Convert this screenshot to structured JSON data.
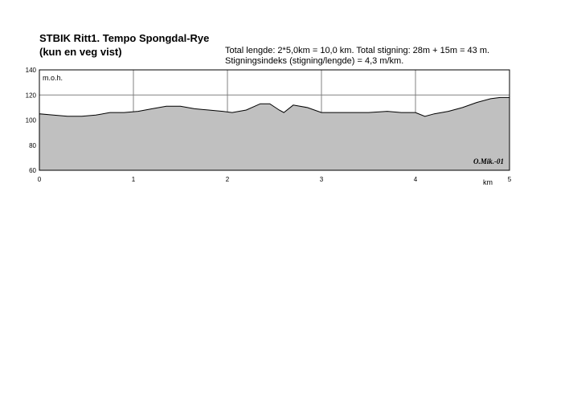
{
  "title_line1": "STBIK Ritt1. Tempo Spongdal-Rye",
  "title_line2": "(kun en veg vist)",
  "info_line1": "Total lengde: 2*5,0km = 10,0 km. Total stigning: 28m + 15m = 43 m.",
  "info_line2": "Stigningsindeks (stigning/lengde) = 4,3 m/km.",
  "signature": "O.Mik.-01",
  "chart_data": {
    "type": "area",
    "ylabel": "m.o.h.",
    "xlabel": "km",
    "xlim": [
      0,
      5
    ],
    "ylim": [
      60,
      140
    ],
    "xticks": [
      "0",
      "1",
      "2",
      "3",
      "4",
      "5"
    ],
    "yticks": [
      "60",
      "80",
      "100",
      "120",
      "140"
    ],
    "grid": true,
    "fill_color": "#c0c0c0",
    "x": [
      0,
      0.15,
      0.3,
      0.45,
      0.6,
      0.75,
      0.9,
      1.05,
      1.2,
      1.35,
      1.5,
      1.65,
      1.8,
      1.95,
      2.05,
      2.2,
      2.35,
      2.45,
      2.55,
      2.6,
      2.7,
      2.85,
      3.0,
      3.15,
      3.3,
      3.5,
      3.7,
      3.85,
      4.0,
      4.1,
      4.2,
      4.35,
      4.5,
      4.65,
      4.8,
      4.9,
      5.0
    ],
    "y": [
      105,
      104,
      103,
      103,
      104,
      106,
      106,
      107,
      109,
      111,
      111,
      109,
      108,
      107,
      106,
      108,
      113,
      113,
      108,
      106,
      112,
      110,
      106,
      106,
      106,
      106,
      107,
      106,
      106,
      103,
      105,
      107,
      110,
      114,
      117,
      118,
      118
    ]
  }
}
